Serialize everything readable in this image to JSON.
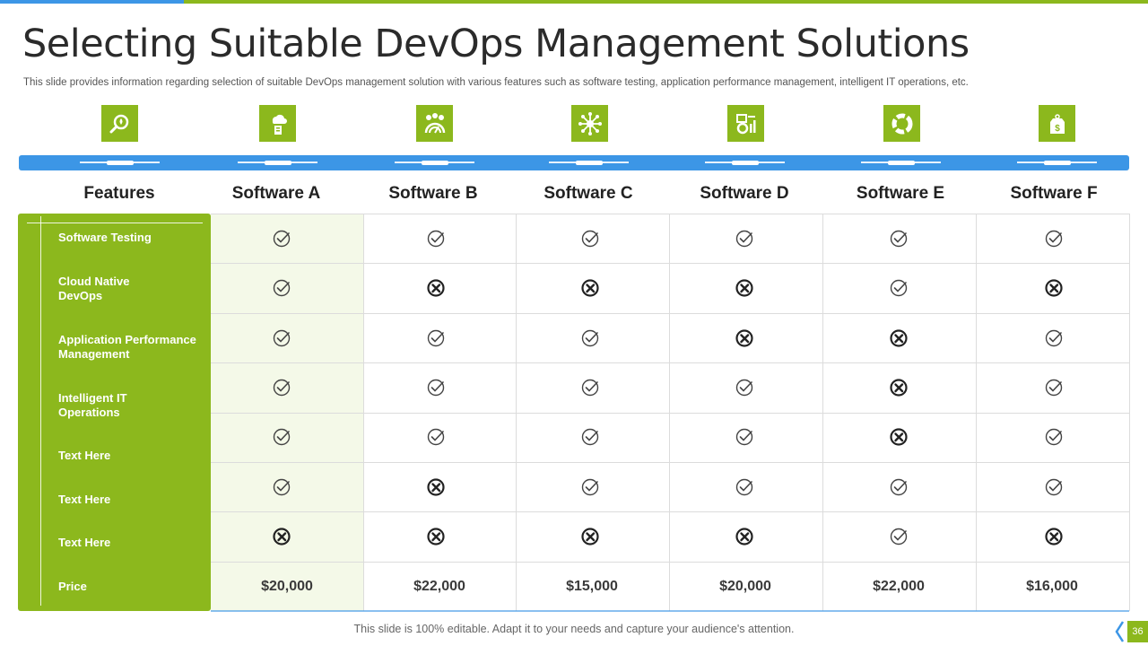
{
  "header": {
    "title": "Selecting Suitable DevOps Management Solutions",
    "subtitle": "This slide provides information regarding selection of suitable DevOps management solution with various features such as software testing, application performance management, intelligent IT operations, etc."
  },
  "colors": {
    "accent_green": "#8cb81d",
    "accent_blue": "#3c96e6",
    "highlight_column": "#f4f9e8"
  },
  "icons": [
    "magnifier-icon",
    "cloud-server-icon",
    "gears-dashboard-icon",
    "network-hub-icon",
    "tools-chart-icon",
    "refresh-cycle-icon",
    "price-tag-icon"
  ],
  "table": {
    "feature_header": "Features",
    "columns": [
      "Software A",
      "Software B",
      "Software C",
      "Software D",
      "Software E",
      "Software F"
    ],
    "rows": [
      {
        "feature": "Software Testing",
        "values": [
          "check",
          "check",
          "check",
          "check",
          "check",
          "check"
        ]
      },
      {
        "feature": "Cloud Native DevOps",
        "values": [
          "check",
          "cross",
          "cross",
          "cross",
          "check",
          "cross"
        ]
      },
      {
        "feature": "Application Performance Management",
        "values": [
          "check",
          "check",
          "check",
          "cross",
          "cross",
          "check"
        ]
      },
      {
        "feature": "Intelligent IT Operations",
        "values": [
          "check",
          "check",
          "check",
          "check",
          "cross",
          "check"
        ]
      },
      {
        "feature": "Text Here",
        "values": [
          "check",
          "check",
          "check",
          "check",
          "cross",
          "check"
        ]
      },
      {
        "feature": "Text Here",
        "values": [
          "check",
          "cross",
          "check",
          "check",
          "check",
          "check"
        ]
      },
      {
        "feature": "Text Here",
        "values": [
          "cross",
          "cross",
          "cross",
          "cross",
          "check",
          "cross"
        ]
      }
    ],
    "price_label": "Price",
    "prices": [
      "$20,000",
      "$22,000",
      "$15,000",
      "$20,000",
      "$22,000",
      "$16,000"
    ]
  },
  "footer": {
    "text": "This slide is 100% editable. Adapt it to your needs and capture your audience's attention.",
    "page_number": "36"
  }
}
